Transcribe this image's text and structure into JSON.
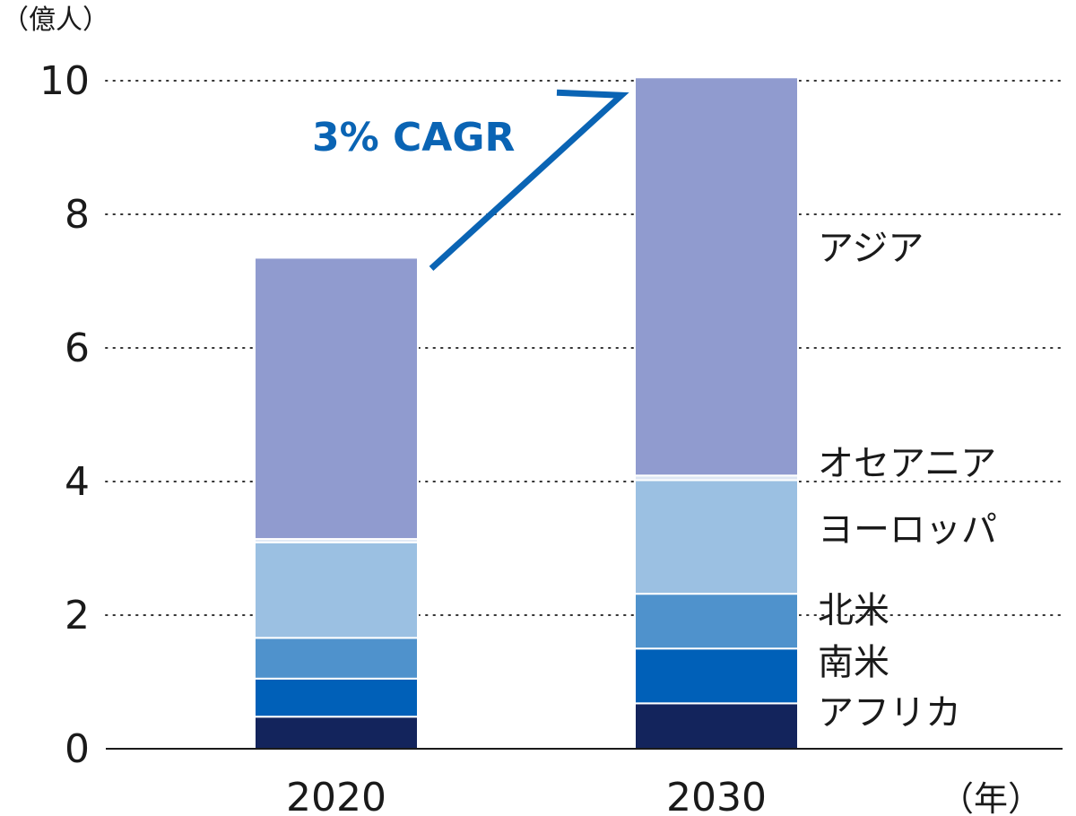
{
  "chart_data": {
    "type": "bar",
    "stacked": true,
    "categories": [
      "2020",
      "2030"
    ],
    "series": [
      {
        "name": "アフリカ",
        "color": "#13245c",
        "values": [
          0.48,
          0.68
        ]
      },
      {
        "name": "南米",
        "color": "#0060b8",
        "values": [
          0.57,
          0.82
        ]
      },
      {
        "name": "北米",
        "color": "#4f92cc",
        "values": [
          0.61,
          0.82
        ]
      },
      {
        "name": "ヨーロッパ",
        "color": "#9bc0e2",
        "values": [
          1.43,
          1.7
        ]
      },
      {
        "name": "オセアニア",
        "color": "#dde6f3",
        "values": [
          0.05,
          0.07
        ]
      },
      {
        "name": "アジア",
        "color": "#909bcf",
        "values": [
          4.21,
          5.96
        ]
      }
    ],
    "ylim": [
      0,
      10
    ],
    "yticks": [
      "0",
      "2",
      "4",
      "6",
      "8",
      "10"
    ],
    "ylabel": "（億人）",
    "xlabel": "（年）",
    "grid": "horizontal-dotted",
    "annotation": {
      "text": "3% CAGR",
      "color": "#0a64b4"
    }
  }
}
